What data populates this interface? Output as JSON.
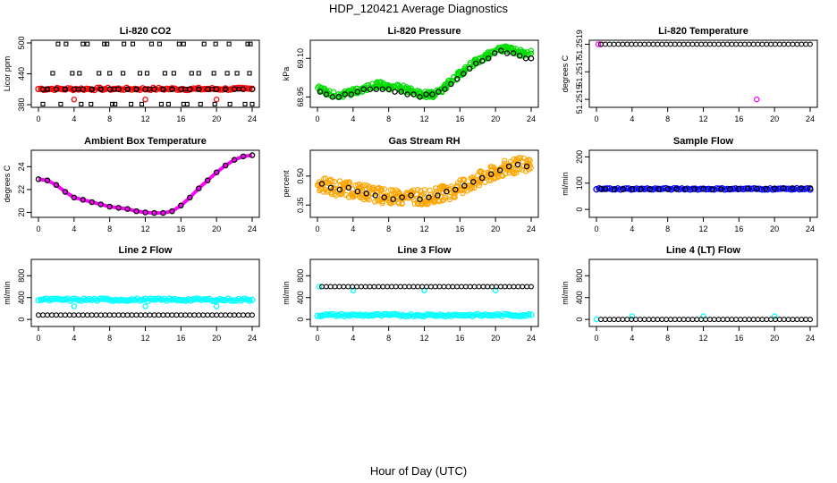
{
  "figure": {
    "title": "HDP_120421  Average Diagnostics",
    "xlabel": "Hour of Day (UTC)"
  },
  "chart_data": [
    {
      "type": "scatter",
      "title": "Li-820 CO2",
      "ylabel": "Licor ppm",
      "xlim": [
        0,
        24
      ],
      "ylim": [
        380,
        500
      ],
      "xticks": [
        "0",
        "4",
        "8",
        "12",
        "16",
        "20",
        "24"
      ],
      "yticks": [
        {
          "v": 380,
          "l": "380"
        },
        {
          "v": 440,
          "l": "440"
        },
        {
          "v": 500,
          "l": "500"
        }
      ],
      "series": [
        {
          "color": "#ff0000",
          "marker": "band",
          "band": [
            407,
            414
          ],
          "x": [
            0,
            24
          ]
        },
        {
          "color": "#ff0000",
          "marker": "o",
          "x": [
            4,
            12,
            20
          ],
          "y": [
            390,
            390,
            390
          ]
        },
        {
          "color": "#000000",
          "marker": "o",
          "x": [
            0.5,
            1,
            2,
            3,
            4,
            5,
            6,
            7,
            8,
            9,
            10,
            11,
            12,
            13,
            14,
            15,
            16,
            17,
            18,
            19,
            20,
            21,
            22,
            23,
            24
          ],
          "y": [
            410,
            410,
            410,
            410,
            410,
            410,
            410,
            410,
            410,
            410,
            410,
            410,
            410,
            410,
            410,
            410,
            410,
            410,
            410,
            410,
            410,
            410,
            410,
            410,
            410
          ]
        },
        {
          "color": "#000000",
          "marker": "s",
          "x": [
            2.2,
            3.1,
            5,
            5.5,
            7.4,
            7.7,
            9.6,
            10.6,
            12.7,
            13.6,
            15.8,
            16.3,
            18.6,
            19.9,
            21.4,
            23.5,
            23.8
          ],
          "y": [
            498,
            498,
            498,
            498,
            498,
            498,
            498,
            498,
            498,
            498,
            498,
            498,
            498,
            498,
            498,
            498,
            498
          ]
        },
        {
          "color": "#000000",
          "marker": "s",
          "x": [
            1.6,
            3.8,
            4.6,
            6.8,
            8,
            9.5,
            11.4,
            12.2,
            14.2,
            15.2,
            17.2,
            18,
            19.7,
            21.2,
            22.3,
            23.7
          ],
          "y": [
            441,
            441,
            441,
            441,
            441,
            441,
            441,
            441,
            441,
            441,
            441,
            441,
            441,
            441,
            441,
            441
          ]
        },
        {
          "color": "#000000",
          "marker": "s",
          "x": [
            0.5,
            2.5,
            4.8,
            5.9,
            8.3,
            8.6,
            10.4,
            11.6,
            13.8,
            14.6,
            16.3,
            16.7,
            18.2,
            19.8,
            21.5,
            23.2,
            24
          ],
          "y": [
            381,
            381,
            381,
            381,
            381,
            381,
            381,
            381,
            381,
            381,
            381,
            381,
            381,
            381,
            381,
            381,
            381
          ]
        },
        {
          "color": "#000000",
          "marker": "s",
          "x": [
            1,
            3,
            4.5,
            6,
            7,
            8.5,
            10,
            11,
            12.5,
            14,
            15,
            16.5,
            18,
            19.5,
            21,
            22.5
          ],
          "y": [
            410,
            410,
            410,
            410,
            410,
            410,
            410,
            410,
            410,
            410,
            410,
            410,
            410,
            410,
            410,
            410
          ]
        }
      ]
    },
    {
      "type": "scatter",
      "title": "Li-820 Pressure",
      "ylabel": "kPa",
      "xlim": [
        0,
        24
      ],
      "ylim": [
        68.92,
        69.16
      ],
      "xticks": [
        "0",
        "4",
        "8",
        "12",
        "16",
        "20",
        "24"
      ],
      "yticks": [
        {
          "v": 68.95,
          "l": "68.95"
        },
        {
          "v": 69.1,
          "l": "69.10"
        }
      ],
      "series": [
        {
          "color": "#00dd00",
          "marker": "spread",
          "spread": 0.012,
          "x": [
            0,
            1,
            2,
            3,
            4,
            5,
            6,
            7,
            8,
            9,
            10,
            11,
            12,
            13,
            14,
            15,
            16,
            17,
            18,
            19,
            20,
            21,
            22,
            23,
            24
          ],
          "y": [
            68.99,
            68.97,
            68.96,
            68.96,
            68.97,
            68.98,
            68.99,
            69.0,
            68.99,
            68.99,
            68.98,
            68.97,
            68.96,
            68.96,
            68.98,
            69.01,
            69.04,
            69.07,
            69.09,
            69.11,
            69.13,
            69.14,
            69.13,
            69.12,
            69.12
          ]
        },
        {
          "color": "#000000",
          "marker": "o",
          "x": [
            0.3,
            1,
            1.7,
            2.4,
            3.1,
            3.8,
            4.5,
            5.2,
            5.9,
            6.6,
            7.3,
            8,
            8.7,
            9.4,
            10.1,
            10.8,
            11.5,
            12.2,
            12.9,
            13.6,
            14.3,
            15,
            15.7,
            16.4,
            17.1,
            17.8,
            18.5,
            19.2,
            19.9,
            20.6,
            21.3,
            22,
            22.7,
            23.4,
            24
          ],
          "y": [
            68.97,
            68.96,
            68.95,
            68.95,
            68.96,
            68.96,
            68.97,
            68.98,
            68.98,
            68.98,
            68.98,
            68.98,
            68.97,
            68.97,
            68.96,
            68.96,
            68.95,
            68.96,
            68.96,
            68.97,
            68.98,
            69.0,
            69.02,
            69.04,
            69.06,
            69.08,
            69.09,
            69.1,
            69.12,
            69.13,
            69.12,
            69.12,
            69.11,
            69.1,
            69.1
          ]
        }
      ]
    },
    {
      "type": "scatter",
      "title": "Li-820 Temperature",
      "ylabel": "degrees C",
      "xlim": [
        0,
        24
      ],
      "ylim": [
        51.25145,
        51.25192
      ],
      "xticks": [
        "0",
        "4",
        "8",
        "12",
        "16",
        "20",
        "24"
      ],
      "yticks": [
        {
          "v": 51.25149,
          "l": "51.2515"
        },
        {
          "v": 51.2517,
          "l": "51.2517"
        },
        {
          "v": 51.25191,
          "l": "51.2519"
        }
      ],
      "series": [
        {
          "color": "#ff00ff",
          "marker": "o",
          "x": [
            0.2,
            0.5,
            18
          ],
          "y": [
            51.25191,
            51.25191,
            51.25149
          ]
        },
        {
          "color": "#000000",
          "marker": "line-o",
          "x": [
            0.5,
            24
          ],
          "y": [
            51.25191,
            51.25191
          ]
        }
      ]
    },
    {
      "type": "scatter",
      "title": "Ambient Box Temperature",
      "ylabel": "degrees C",
      "xlim": [
        0,
        24
      ],
      "ylim": [
        19.8,
        25.2
      ],
      "xticks": [
        "0",
        "4",
        "8",
        "12",
        "16",
        "20",
        "24"
      ],
      "yticks": [
        {
          "v": 20,
          "l": "20"
        },
        {
          "v": 22,
          "l": "22"
        },
        {
          "v": 24,
          "l": "24"
        }
      ],
      "series": [
        {
          "color": "#ff00ff",
          "marker": "line",
          "x": [
            0,
            1,
            2,
            3,
            4,
            5,
            6,
            7,
            8,
            9,
            10,
            11,
            12,
            13,
            14,
            15,
            16,
            17,
            18,
            19,
            20,
            21,
            22,
            23,
            24
          ],
          "y": [
            22.9,
            22.8,
            22.4,
            21.8,
            21.3,
            21.1,
            20.9,
            20.7,
            20.5,
            20.4,
            20.3,
            20.1,
            20.0,
            19.95,
            19.95,
            20.1,
            20.6,
            21.3,
            22.1,
            22.8,
            23.5,
            24.1,
            24.6,
            24.9,
            25.0
          ]
        },
        {
          "color": "#000000",
          "marker": "o",
          "x": [
            0,
            1,
            2,
            3,
            4,
            5,
            6,
            7,
            8,
            9,
            10,
            11,
            12,
            13,
            14,
            15,
            16,
            17,
            18,
            19,
            20,
            21,
            22,
            23,
            24
          ],
          "y": [
            22.9,
            22.8,
            22.4,
            21.8,
            21.3,
            21.1,
            20.9,
            20.7,
            20.5,
            20.4,
            20.3,
            20.1,
            20.0,
            19.95,
            19.95,
            20.1,
            20.6,
            21.3,
            22.1,
            22.8,
            23.5,
            24.1,
            24.6,
            24.9,
            25.0
          ]
        }
      ]
    },
    {
      "type": "scatter",
      "title": "Gas Stream RH",
      "ylabel": "percent",
      "xlim": [
        0,
        24
      ],
      "ylim": [
        0.3,
        0.62
      ],
      "xticks": [
        "0",
        "4",
        "8",
        "12",
        "16",
        "20",
        "24"
      ],
      "yticks": [
        {
          "v": 0.35,
          "l": "0.35"
        },
        {
          "v": 0.5,
          "l": "0.50"
        }
      ],
      "series": [
        {
          "color": "#ffa500",
          "marker": "spread",
          "spread": 0.04,
          "x": [
            0,
            1,
            2,
            3,
            4,
            5,
            6,
            7,
            8,
            9,
            10,
            11,
            12,
            13,
            14,
            15,
            16,
            17,
            18,
            19,
            20,
            21,
            22,
            23,
            24
          ],
          "y": [
            0.46,
            0.45,
            0.44,
            0.43,
            0.43,
            0.42,
            0.41,
            0.4,
            0.39,
            0.39,
            0.39,
            0.39,
            0.39,
            0.4,
            0.41,
            0.42,
            0.44,
            0.46,
            0.48,
            0.5,
            0.52,
            0.54,
            0.55,
            0.56,
            0.55
          ]
        },
        {
          "color": "#000000",
          "marker": "o",
          "x": [
            0.5,
            1.5,
            2.5,
            3.5,
            4.5,
            5.5,
            6.5,
            7.5,
            8.5,
            9.5,
            10.5,
            11.5,
            12.5,
            13.5,
            14.5,
            15.5,
            16.5,
            17.5,
            18.5,
            19.5,
            20.5,
            21.5,
            22.5,
            23.5
          ],
          "y": [
            0.46,
            0.44,
            0.43,
            0.44,
            0.42,
            0.41,
            0.4,
            0.39,
            0.38,
            0.39,
            0.4,
            0.38,
            0.39,
            0.4,
            0.42,
            0.43,
            0.45,
            0.47,
            0.49,
            0.51,
            0.53,
            0.55,
            0.56,
            0.55
          ]
        }
      ]
    },
    {
      "type": "scatter",
      "title": "Sample Flow",
      "ylabel": "ml/min",
      "xlim": [
        0,
        24
      ],
      "ylim": [
        -20,
        215
      ],
      "xticks": [
        "0",
        "4",
        "8",
        "12",
        "16",
        "20",
        "24"
      ],
      "yticks": [
        {
          "v": 0,
          "l": "0"
        },
        {
          "v": 100,
          "l": "100"
        },
        {
          "v": 200,
          "l": "200"
        }
      ],
      "series": [
        {
          "color": "#0000ff",
          "marker": "band",
          "band": [
            74,
            82
          ],
          "x": [
            0,
            24
          ]
        },
        {
          "color": "#000000",
          "marker": "o",
          "x": [
            0.5,
            1,
            2,
            3,
            4,
            5,
            6,
            7,
            8,
            9,
            10,
            11,
            12,
            13,
            14,
            15,
            16,
            17,
            18,
            19,
            20,
            21,
            22,
            23,
            24
          ],
          "y": [
            78,
            77,
            77,
            77,
            78,
            77,
            77,
            77,
            77,
            77,
            77,
            77,
            78,
            77,
            77,
            78,
            78,
            78,
            79,
            79,
            80,
            80,
            81,
            81,
            81
          ]
        }
      ]
    },
    {
      "type": "scatter",
      "title": "Line 2 Flow",
      "ylabel": "ml/min",
      "xlim": [
        0,
        24
      ],
      "ylim": [
        -80,
        1050
      ],
      "xticks": [
        "0",
        "4",
        "8",
        "12",
        "16",
        "20",
        "24"
      ],
      "yticks": [
        {
          "v": 0,
          "l": "0"
        },
        {
          "v": 400,
          "l": "400"
        },
        {
          "v": 800,
          "l": "800"
        }
      ],
      "series": [
        {
          "color": "#00ffff",
          "marker": "band",
          "band": [
            325,
            395
          ],
          "x": [
            0,
            24
          ]
        },
        {
          "color": "#00ffff",
          "marker": "o",
          "x": [
            4,
            12,
            20
          ],
          "y": [
            240,
            240,
            240
          ]
        },
        {
          "color": "#000000",
          "marker": "line-o",
          "x": [
            0,
            24
          ],
          "y": [
            80,
            80
          ]
        }
      ]
    },
    {
      "type": "scatter",
      "title": "Line 3 Flow",
      "ylabel": "ml/min",
      "xlim": [
        0,
        24
      ],
      "ylim": [
        -80,
        1050
      ],
      "xticks": [
        "0",
        "4",
        "8",
        "12",
        "16",
        "20",
        "24"
      ],
      "yticks": [
        {
          "v": 0,
          "l": "0"
        },
        {
          "v": 400,
          "l": "400"
        },
        {
          "v": 800,
          "l": "800"
        }
      ],
      "series": [
        {
          "color": "#00ffff",
          "marker": "band",
          "band": [
            45,
            110
          ],
          "x": [
            0,
            24
          ]
        },
        {
          "color": "#00ffff",
          "marker": "o",
          "x": [
            0.2,
            4,
            12,
            20
          ],
          "y": [
            600,
            530,
            530,
            530
          ]
        },
        {
          "color": "#000000",
          "marker": "line-o",
          "x": [
            0.5,
            24
          ],
          "y": [
            600,
            600
          ]
        }
      ]
    },
    {
      "type": "scatter",
      "title": "Line 4 (LT) Flow",
      "ylabel": "ml/min",
      "xlim": [
        0,
        24
      ],
      "ylim": [
        -80,
        1050
      ],
      "xticks": [
        "0",
        "4",
        "8",
        "12",
        "16",
        "20",
        "24"
      ],
      "yticks": [
        {
          "v": 0,
          "l": "0"
        },
        {
          "v": 400,
          "l": "400"
        },
        {
          "v": 800,
          "l": "800"
        }
      ],
      "series": [
        {
          "color": "#00ffff",
          "marker": "o",
          "x": [
            0,
            4,
            12,
            20
          ],
          "y": [
            0,
            60,
            60,
            60
          ]
        },
        {
          "color": "#000000",
          "marker": "line-o",
          "x": [
            0.5,
            24
          ],
          "y": [
            0,
            0
          ]
        }
      ]
    }
  ]
}
